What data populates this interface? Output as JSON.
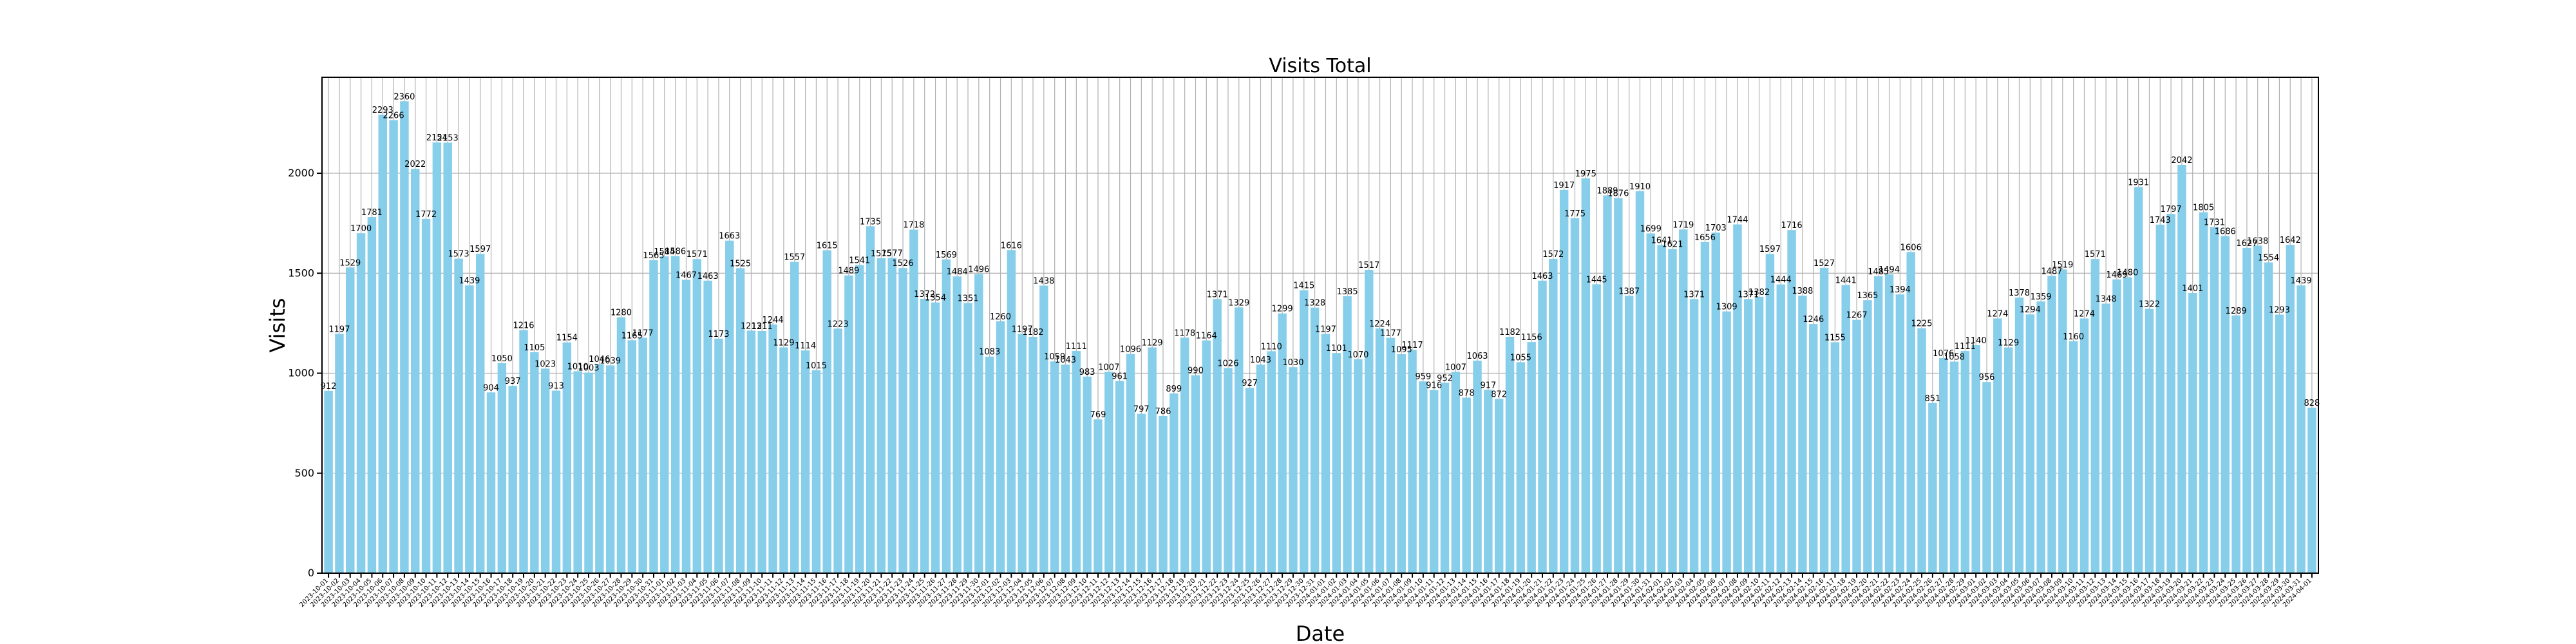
{
  "chart_data": {
    "type": "bar",
    "title": "Visits Total",
    "xlabel": "Date",
    "ylabel": "Visits",
    "ylim": [
      0,
      2480
    ],
    "yticks": [
      0,
      500,
      1000,
      1500,
      2000
    ],
    "grid": true,
    "bar_color": "#87CEEB",
    "x_start_date": "2023-10-01",
    "x_end_date": "2024-05-31",
    "values": [
      912,
      1197,
      1529,
      1700,
      1781,
      2293,
      2266,
      2360,
      2022,
      1772,
      2154,
      2153,
      1573,
      1439,
      1597,
      904,
      1050,
      937,
      1216,
      1105,
      1023,
      913,
      1154,
      1010,
      1003,
      1046,
      1039,
      1280,
      1165,
      1177,
      1565,
      1584,
      1586,
      1467,
      1571,
      1463,
      1173,
      1663,
      1525,
      1213,
      1211,
      1244,
      1129,
      1557,
      1114,
      1015,
      1615,
      1223,
      1489,
      1541,
      1735,
      1575,
      1577,
      1526,
      1718,
      1372,
      1354,
      1569,
      1484,
      1351,
      1496,
      1083,
      1260,
      1616,
      1197,
      1182,
      1438,
      1059,
      1043,
      1111,
      983,
      769,
      1007,
      961,
      1096,
      797,
      1129,
      786,
      899,
      1178,
      990,
      1164,
      1371,
      1026,
      1329,
      927,
      1043,
      1110,
      1299,
      1030,
      1415,
      1328,
      1197,
      1101,
      1385,
      1070,
      1517,
      1224,
      1177,
      1095,
      1117,
      959,
      916,
      952,
      1007,
      878,
      1063,
      917,
      872,
      1182,
      1055,
      1156,
      1463,
      1572,
      1917,
      1775,
      1975,
      1445,
      1889,
      1876,
      1387,
      1910,
      1699,
      1641,
      1621,
      1719,
      1371,
      1656,
      1703,
      1309,
      1744,
      1371,
      1382,
      1597,
      1444,
      1716,
      1388,
      1246,
      1527,
      1155,
      1441,
      1267,
      1365,
      1485,
      1494,
      1394,
      1606,
      1225,
      851,
      1076,
      1058,
      1111,
      1140,
      956,
      1274,
      1129,
      1378,
      1294,
      1359,
      1487,
      1519,
      1160,
      1274,
      1571,
      1348,
      1469,
      1480,
      1931,
      1322,
      1743,
      1797,
      2042,
      1401,
      1805,
      1731,
      1686,
      1289,
      1627,
      1638,
      1554,
      1293,
      1642,
      1439,
      828
    ]
  }
}
